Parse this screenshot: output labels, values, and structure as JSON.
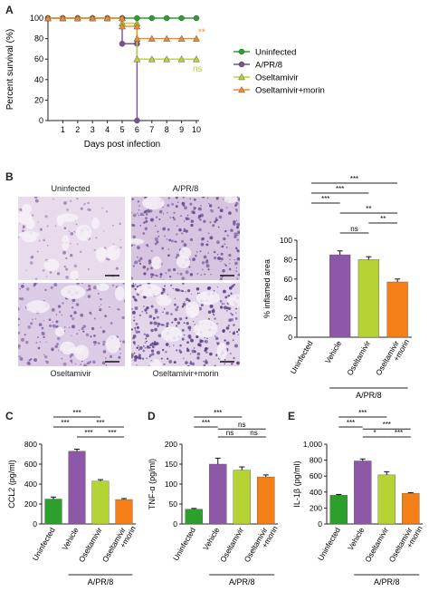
{
  "panels": {
    "A": "A",
    "B": "B",
    "C": "C",
    "D": "D",
    "E": "E"
  },
  "chart_data": [
    {
      "id": "A",
      "type": "line",
      "xlabel": "Days post infection",
      "ylabel": "Percent survival (%)",
      "x_ticks": [
        1,
        2,
        3,
        4,
        5,
        6,
        7,
        8,
        9,
        10
      ],
      "y_ticks": [
        0,
        20,
        40,
        60,
        80,
        100
      ],
      "xlim": [
        0,
        10
      ],
      "ylim": [
        0,
        100
      ],
      "series": [
        {
          "name": "Uninfected",
          "color": "#2ca02c",
          "marker": "circle",
          "x": [
            0,
            1,
            2,
            3,
            4,
            5,
            6,
            7,
            8,
            9,
            10
          ],
          "y": [
            100,
            100,
            100,
            100,
            100,
            100,
            100,
            100,
            100,
            100,
            100
          ]
        },
        {
          "name": "A/PR/8",
          "color": "#7b4f9e",
          "marker": "circle",
          "x": [
            0,
            1,
            2,
            3,
            4,
            5,
            5,
            6,
            6
          ],
          "y": [
            100,
            100,
            100,
            100,
            100,
            100,
            75,
            75,
            0
          ]
        },
        {
          "name": "Oseltamivir",
          "color": "#b5d334",
          "marker": "triangle",
          "x": [
            0,
            1,
            2,
            3,
            4,
            5,
            5,
            6,
            6,
            7,
            8,
            9,
            10
          ],
          "y": [
            100,
            100,
            100,
            100,
            100,
            100,
            95,
            95,
            60,
            60,
            60,
            60,
            60
          ]
        },
        {
          "name": "Oseltamivir+morin",
          "color": "#f28c28",
          "marker": "triangle",
          "x": [
            0,
            1,
            2,
            3,
            4,
            5,
            5,
            6,
            6,
            7,
            8,
            9,
            10
          ],
          "y": [
            100,
            100,
            100,
            100,
            100,
            100,
            92,
            92,
            80,
            80,
            80,
            80,
            80
          ]
        }
      ],
      "annotations": [
        {
          "text": "**",
          "series": "Oseltamivir+morin"
        },
        {
          "text": "ns",
          "series": "Oseltamivir"
        }
      ]
    },
    {
      "id": "B",
      "type": "bar",
      "ylabel": "% inflamed area",
      "categories": [
        "Uninfected",
        "Vehicle",
        "Oseltamivir",
        "Oseltamivir +morin"
      ],
      "values": [
        0,
        85,
        80,
        57
      ],
      "errors": [
        0,
        4,
        3,
        3
      ],
      "colors": [
        "#2ca02c",
        "#8e58a8",
        "#b5d334",
        "#f57f17"
      ],
      "y_ticks": [
        0,
        20,
        40,
        60,
        80,
        100
      ],
      "ylim": [
        0,
        100
      ],
      "group_label": "A/PR/8",
      "significance": [
        {
          "text": "***"
        },
        {
          "text": "***"
        },
        {
          "text": "***"
        },
        {
          "text": "**"
        },
        {
          "text": "**"
        },
        {
          "text": "ns"
        }
      ]
    },
    {
      "id": "C",
      "type": "bar",
      "ylabel": "CCL2 (pg/ml)",
      "categories": [
        "Uninfected",
        "Vehicle",
        "Oseltamivir",
        "Oseltamivir +morin"
      ],
      "values": [
        250,
        730,
        430,
        245
      ],
      "errors": [
        20,
        20,
        15,
        10
      ],
      "colors": [
        "#2ca02c",
        "#8e58a8",
        "#b5d334",
        "#f57f17"
      ],
      "y_ticks": [
        0,
        200,
        400,
        600,
        800
      ],
      "ylim": [
        0,
        800
      ],
      "group_label": "A/PR/8",
      "significance": [
        {
          "text": "ns"
        },
        {
          "text": "***"
        },
        {
          "text": "***"
        },
        {
          "text": "***"
        },
        {
          "text": "***"
        },
        {
          "text": "***"
        }
      ]
    },
    {
      "id": "D",
      "type": "bar",
      "ylabel": "TNF-α (pg/ml)",
      "categories": [
        "Uninfected",
        "Vehicle",
        "Oseltamivir",
        "Oseltamivir +morin"
      ],
      "values": [
        37,
        150,
        135,
        118
      ],
      "errors": [
        2,
        15,
        8,
        5
      ],
      "colors": [
        "#2ca02c",
        "#8e58a8",
        "#b5d334",
        "#f57f17"
      ],
      "y_ticks": [
        0,
        50,
        100,
        150,
        200
      ],
      "ylim": [
        0,
        200
      ],
      "group_label": "A/PR/8",
      "significance": [
        {
          "text": "***"
        },
        {
          "text": "***"
        },
        {
          "text": "***"
        },
        {
          "text": "ns"
        },
        {
          "text": "ns"
        },
        {
          "text": "ns"
        }
      ]
    },
    {
      "id": "E",
      "type": "bar",
      "ylabel": "IL-1β (pg/ml)",
      "categories": [
        "Uninfected",
        "Vehicle",
        "Oseltamivir",
        "Oseltamivir +morin"
      ],
      "values": [
        360,
        790,
        615,
        385
      ],
      "errors": [
        10,
        25,
        40,
        8
      ],
      "colors": [
        "#2ca02c",
        "#8e58a8",
        "#b5d334",
        "#f57f17"
      ],
      "y_ticks": [
        0,
        200,
        400,
        600,
        800,
        1000
      ],
      "y_tick_labels": [
        "0",
        "200",
        "400",
        "600",
        "800",
        "1,000"
      ],
      "ylim": [
        0,
        1000
      ],
      "group_label": "A/PR/8",
      "significance": [
        {
          "text": "ns"
        },
        {
          "text": "***"
        },
        {
          "text": "***"
        },
        {
          "text": "***"
        },
        {
          "text": "*"
        },
        {
          "text": "***"
        }
      ]
    }
  ],
  "micrographs": [
    {
      "label": "Uninfected",
      "tone": "#e8dcec",
      "cell": "#9b7bb5"
    },
    {
      "label": "A/PR/8",
      "tone": "#d7c4e0",
      "cell": "#6a4a92"
    },
    {
      "label": "Oseltamivir",
      "tone": "#dccbe4",
      "cell": "#7f5ba2"
    },
    {
      "label": "Oseltamivir+morin",
      "tone": "#e3d6ea",
      "cell": "#5b3d85"
    }
  ]
}
